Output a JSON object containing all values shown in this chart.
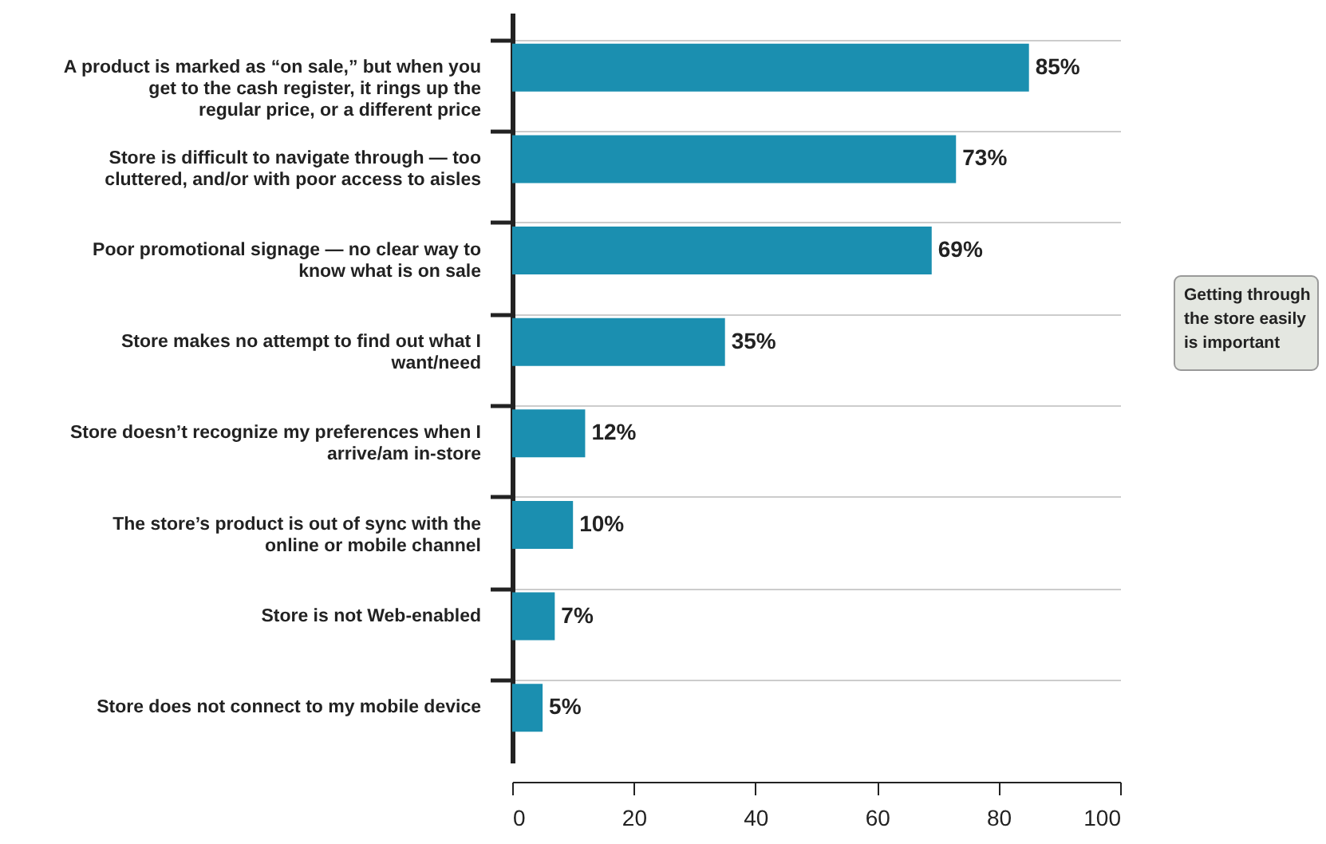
{
  "chart_data": {
    "type": "bar",
    "orientation": "horizontal",
    "categories": [
      "A product is marked as “on sale,” but when you get to the cash register, it rings up the regular price, or a different price",
      "Store is difficult to navigate through — too cluttered, and/or with poor access to aisles",
      "Poor promotional signage — no clear way to know what is on sale",
      "Store makes no attempt to find out what I want/need",
      "Store doesn’t recognize my preferences when I arrive/am in-store",
      "The store’s product is out of sync with the online or mobile channel",
      "Store is not Web-enabled",
      "Store does not connect to my mobile device"
    ],
    "values": [
      85,
      73,
      69,
      35,
      12,
      10,
      7,
      5
    ],
    "value_labels": [
      "85%",
      "73%",
      "69%",
      "35%",
      "12%",
      "10%",
      "7%",
      "5%"
    ],
    "color": "#1b8fb0",
    "xlim": [
      0,
      100
    ],
    "xticks": [
      0,
      20,
      40,
      60,
      80,
      100
    ],
    "grid": "y",
    "annotations": [
      "Getting through the store easily is important"
    ]
  }
}
